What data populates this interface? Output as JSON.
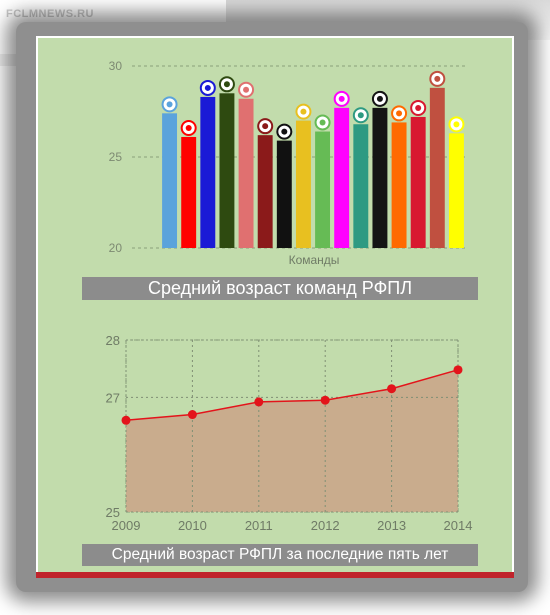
{
  "watermark": "FCLMNEWS.RU",
  "chart_data": [
    {
      "type": "bar",
      "title": "Средний возраст команд РФПЛ",
      "xlabel": "Команды",
      "ylabel": "",
      "ylim": [
        20,
        30
      ],
      "yticks": [
        20,
        25,
        30
      ],
      "grid": true,
      "bars": [
        {
          "team_icon": "zenit-icon",
          "value": 27.4,
          "color": "#5ba3dc"
        },
        {
          "team_icon": "cska-icon",
          "value": 26.1,
          "color": "#ff0000"
        },
        {
          "team_icon": "kuban-icon",
          "value": 28.3,
          "color": "#1a1ad6"
        },
        {
          "team_icon": "dynamo-icon",
          "value": 28.5,
          "color": "#2e4a10"
        },
        {
          "team_icon": "lokomotiv-icon",
          "value": 28.2,
          "color": "#e07070"
        },
        {
          "team_icon": "spartak-icon",
          "value": 26.2,
          "color": "#8b1a1a"
        },
        {
          "team_icon": "krasnodar-icon",
          "value": 25.9,
          "color": "#111111"
        },
        {
          "team_icon": "tom-icon",
          "value": 27.0,
          "color": "#e8c020"
        },
        {
          "team_icon": "terek-icon",
          "value": 26.4,
          "color": "#66bb55"
        },
        {
          "team_icon": "amkar-icon",
          "value": 27.7,
          "color": "#ff00ff"
        },
        {
          "team_icon": "rubin-icon",
          "value": 26.8,
          "color": "#2e9a82"
        },
        {
          "team_icon": "torpedo-icon",
          "value": 27.7,
          "color": "#141414"
        },
        {
          "team_icon": "ural-icon",
          "value": 26.9,
          "color": "#ff6a00"
        },
        {
          "team_icon": "mordovia-icon",
          "value": 27.2,
          "color": "#d81830"
        },
        {
          "team_icon": "ufa-icon",
          "value": 28.8,
          "color": "#c05040"
        },
        {
          "team_icon": "rostov-icon",
          "value": 26.3,
          "color": "#ffff00"
        }
      ]
    },
    {
      "type": "area",
      "title": "Средний возраст РФПЛ за последние пять лет",
      "xlabel": "",
      "ylabel": "",
      "x": [
        "2009",
        "2010",
        "2011",
        "2012",
        "2013",
        "2014"
      ],
      "y": [
        26.6,
        26.7,
        26.92,
        26.95,
        27.15,
        27.48
      ],
      "ylim": [
        25,
        28
      ],
      "yticks": [
        25,
        27,
        28
      ],
      "grid": true,
      "line_color": "#e3141b",
      "fill_color": "#c9a98b"
    }
  ]
}
